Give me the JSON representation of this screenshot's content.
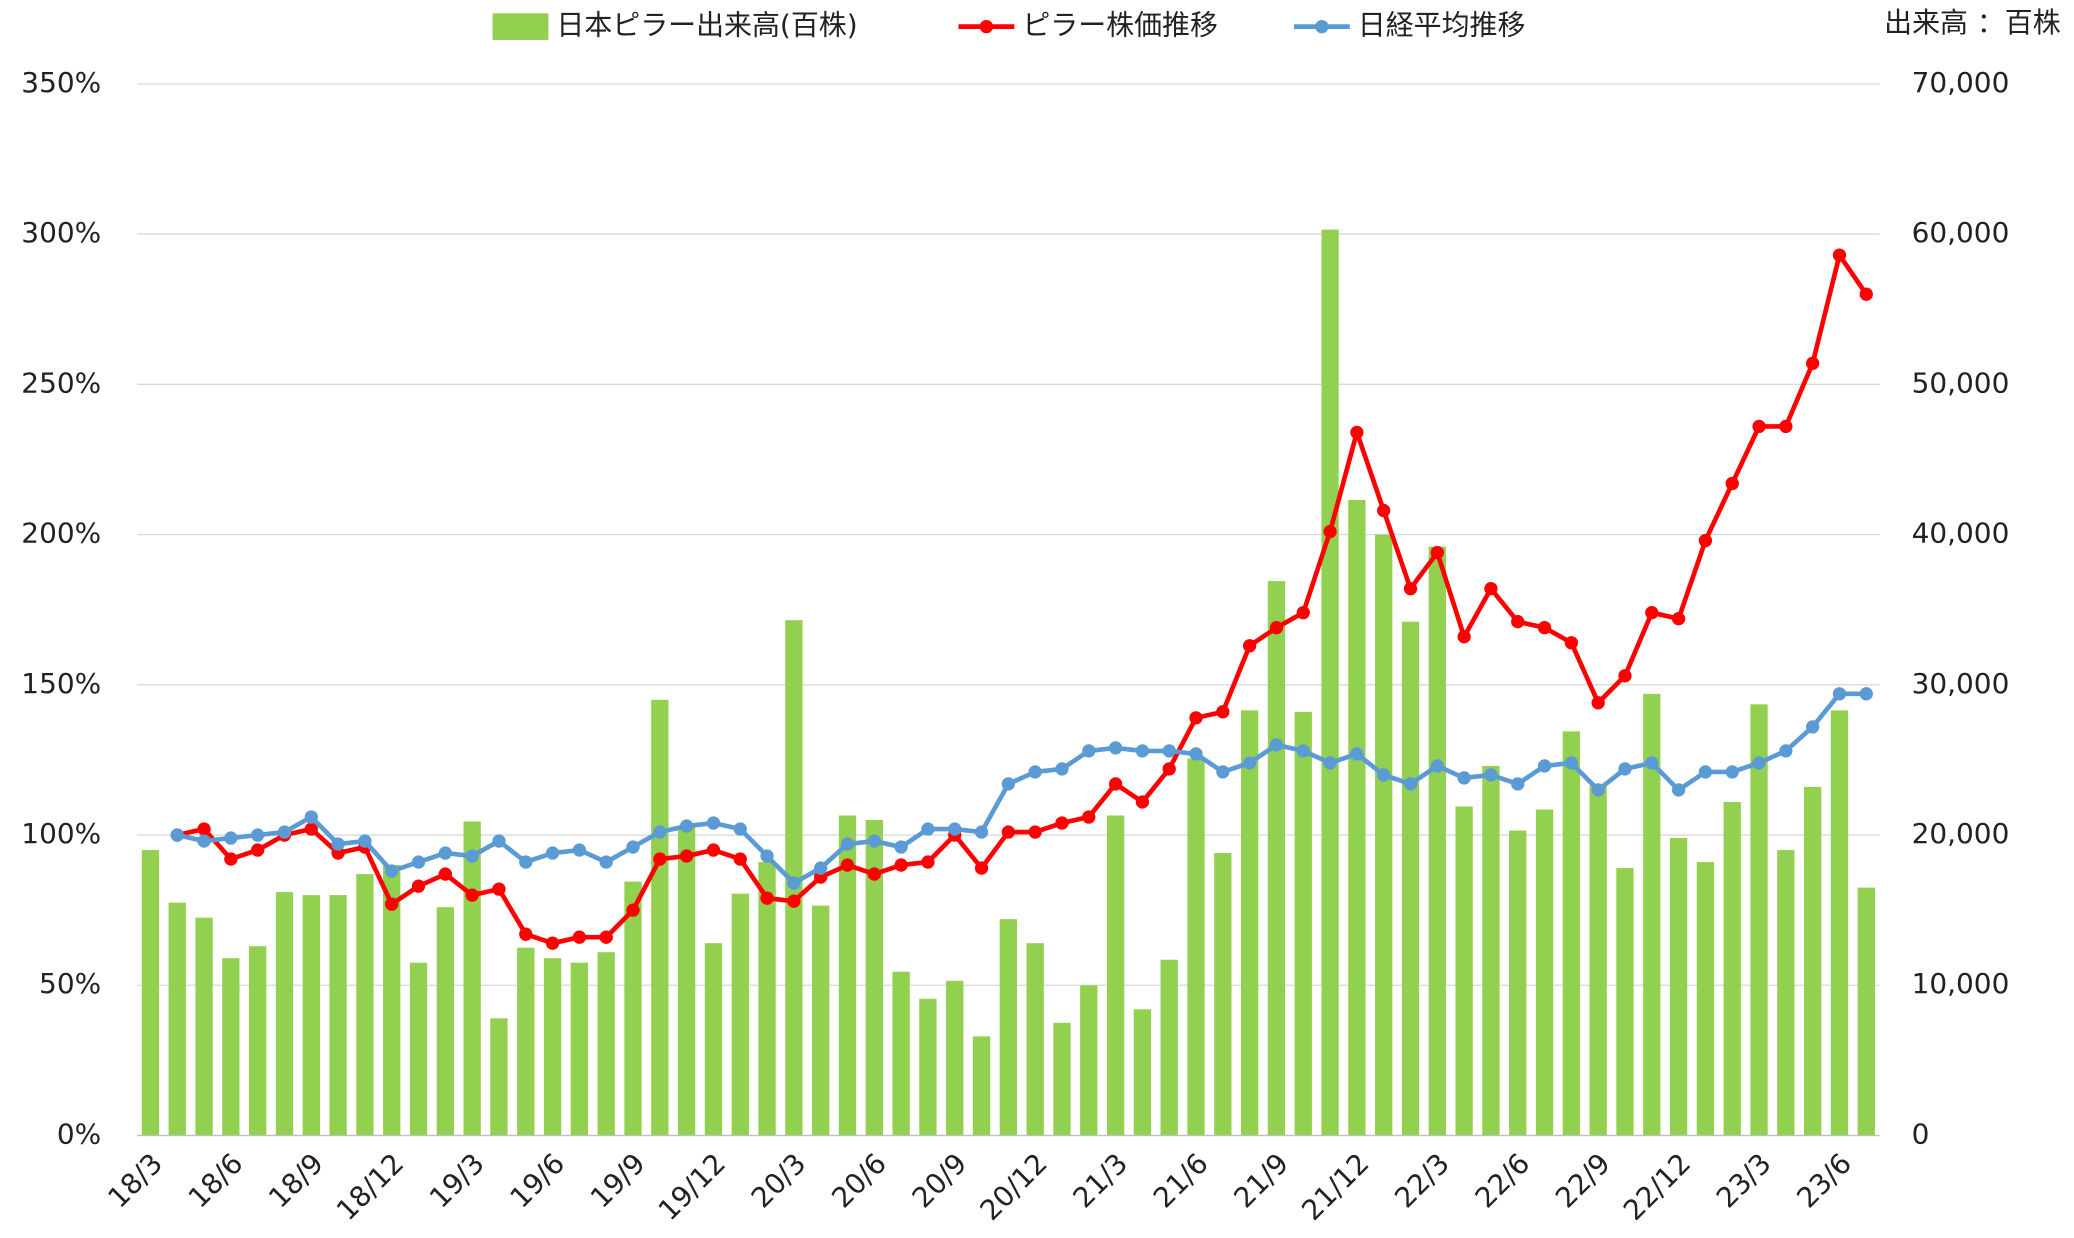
{
  "chart_data": {
    "type": "bar_line",
    "annotation": "出来高 ：百株",
    "categories": [
      "18/3",
      null,
      null,
      "18/6",
      null,
      null,
      "18/9",
      null,
      null,
      "18/12",
      null,
      null,
      "19/3",
      null,
      null,
      "19/6",
      null,
      null,
      "19/9",
      null,
      null,
      "19/12",
      null,
      null,
      "20/3",
      null,
      null,
      "20/6",
      null,
      null,
      "20/9",
      null,
      null,
      "20/12",
      null,
      null,
      "21/3",
      null,
      null,
      "21/6",
      null,
      null,
      "21/9",
      null,
      null,
      "21/12",
      null,
      null,
      "22/3",
      null,
      null,
      "22/6",
      null,
      null,
      "22/9",
      null,
      null,
      "22/12",
      null,
      null,
      "23/3",
      null,
      null,
      "23/6",
      null
    ],
    "series": [
      {
        "name": "日本ピラー出来高(百株)",
        "type": "bar",
        "axis": "y2",
        "color": "#92d050",
        "values": [
          19000,
          15500,
          14500,
          11800,
          12600,
          16200,
          16000,
          16000,
          17400,
          18000,
          11500,
          15200,
          20900,
          7800,
          12500,
          11800,
          11500,
          12200,
          16900,
          29000,
          20600,
          12800,
          16100,
          18200,
          34300,
          15300,
          21300,
          21000,
          10900,
          9100,
          10300,
          6600,
          14400,
          12800,
          7500,
          10000,
          21300,
          8400,
          11700,
          25100,
          18800,
          28300,
          36900,
          28200,
          60300,
          42300,
          40000,
          34200,
          39200,
          21900,
          24600,
          20300,
          21700,
          26900,
          23300,
          17800,
          29400,
          19800,
          18200,
          22200,
          28700,
          19000,
          23200,
          28300,
          16500
        ]
      },
      {
        "name": "ピラー株価推移",
        "type": "line",
        "color": "#ff0000",
        "values": [
          null,
          100,
          102,
          92,
          95,
          100,
          102,
          94,
          96,
          77,
          83,
          87,
          80,
          82,
          67,
          64,
          66,
          66,
          75,
          92,
          93,
          95,
          92,
          79,
          78,
          86,
          90,
          87,
          90,
          91,
          100,
          89,
          101,
          101,
          104,
          106,
          117,
          111,
          122,
          139,
          141,
          163,
          169,
          174,
          201,
          234,
          208,
          182,
          194,
          166,
          182,
          171,
          169,
          164,
          144,
          153,
          174,
          172,
          198,
          217,
          236,
          236,
          257,
          293,
          280
        ]
      },
      {
        "name": "日経平均推移",
        "type": "line",
        "color": "#5b9bd5",
        "values": [
          null,
          100,
          98,
          99,
          100,
          101,
          106,
          97,
          98,
          88,
          91,
          94,
          93,
          98,
          91,
          94,
          95,
          91,
          96,
          101,
          103,
          104,
          102,
          93,
          84,
          89,
          97,
          98,
          96,
          102,
          102,
          101,
          117,
          121,
          122,
          128,
          129,
          128,
          128,
          127,
          121,
          124,
          130,
          128,
          124,
          127,
          120,
          117,
          123,
          119,
          120,
          117,
          123,
          124,
          115,
          122,
          124,
          115,
          121,
          121,
          124,
          128,
          136,
          147,
          147
        ]
      }
    ],
    "ylim": [
      0,
      350
    ],
    "yticks": [
      {
        "value": 0,
        "label": "0%"
      },
      {
        "value": 50,
        "label": "50%"
      },
      {
        "value": 100,
        "label": "100%"
      },
      {
        "value": 150,
        "label": "150%"
      },
      {
        "value": 200,
        "label": "200%"
      },
      {
        "value": 250,
        "label": "250%"
      },
      {
        "value": 300,
        "label": "300%"
      },
      {
        "value": 350,
        "label": "350%"
      }
    ],
    "y2lim": [
      0,
      70000
    ],
    "y2ticks": [
      0,
      {
        "value": 10000,
        "label": "10,000"
      },
      {
        "value": 20000,
        "label": "20,000"
      },
      {
        "value": 30000,
        "label": "30,000"
      },
      {
        "value": 40000,
        "label": "40,000"
      },
      {
        "value": 50000,
        "label": "50,000"
      },
      {
        "value": 60000,
        "label": "60,000"
      },
      {
        "value": 70000,
        "label": "70,000"
      }
    ],
    "grid": true
  }
}
